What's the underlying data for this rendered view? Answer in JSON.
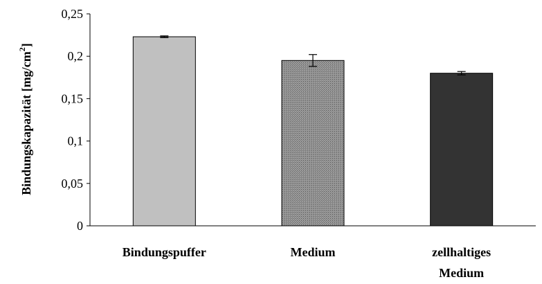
{
  "chart_data": {
    "type": "bar",
    "categories": [
      [
        "Bindungspuffer"
      ],
      [
        "Medium"
      ],
      [
        "zellhaltiges",
        "Medium"
      ]
    ],
    "values": [
      0.223,
      0.195,
      0.18
    ],
    "errors": [
      0.001,
      0.007,
      0.002
    ],
    "bar_colors": [
      "#c0c0c0",
      "#8c8c8c",
      "#333333"
    ],
    "bar_patterns": [
      "solid",
      "dotted",
      "solid"
    ],
    "ylabel": "Bindungskapazität [mg/cm",
    "ylabel_superscript": "2",
    "ylabel_suffix": "]",
    "ylim": [
      0,
      0.25
    ],
    "yticks": [
      0,
      0.05,
      0.1,
      0.15,
      0.2,
      0.25
    ],
    "ytick_labels": [
      "0",
      "0,05",
      "0,1",
      "0,15",
      "0,2",
      "0,25"
    ],
    "grid": false,
    "legend": false
  }
}
